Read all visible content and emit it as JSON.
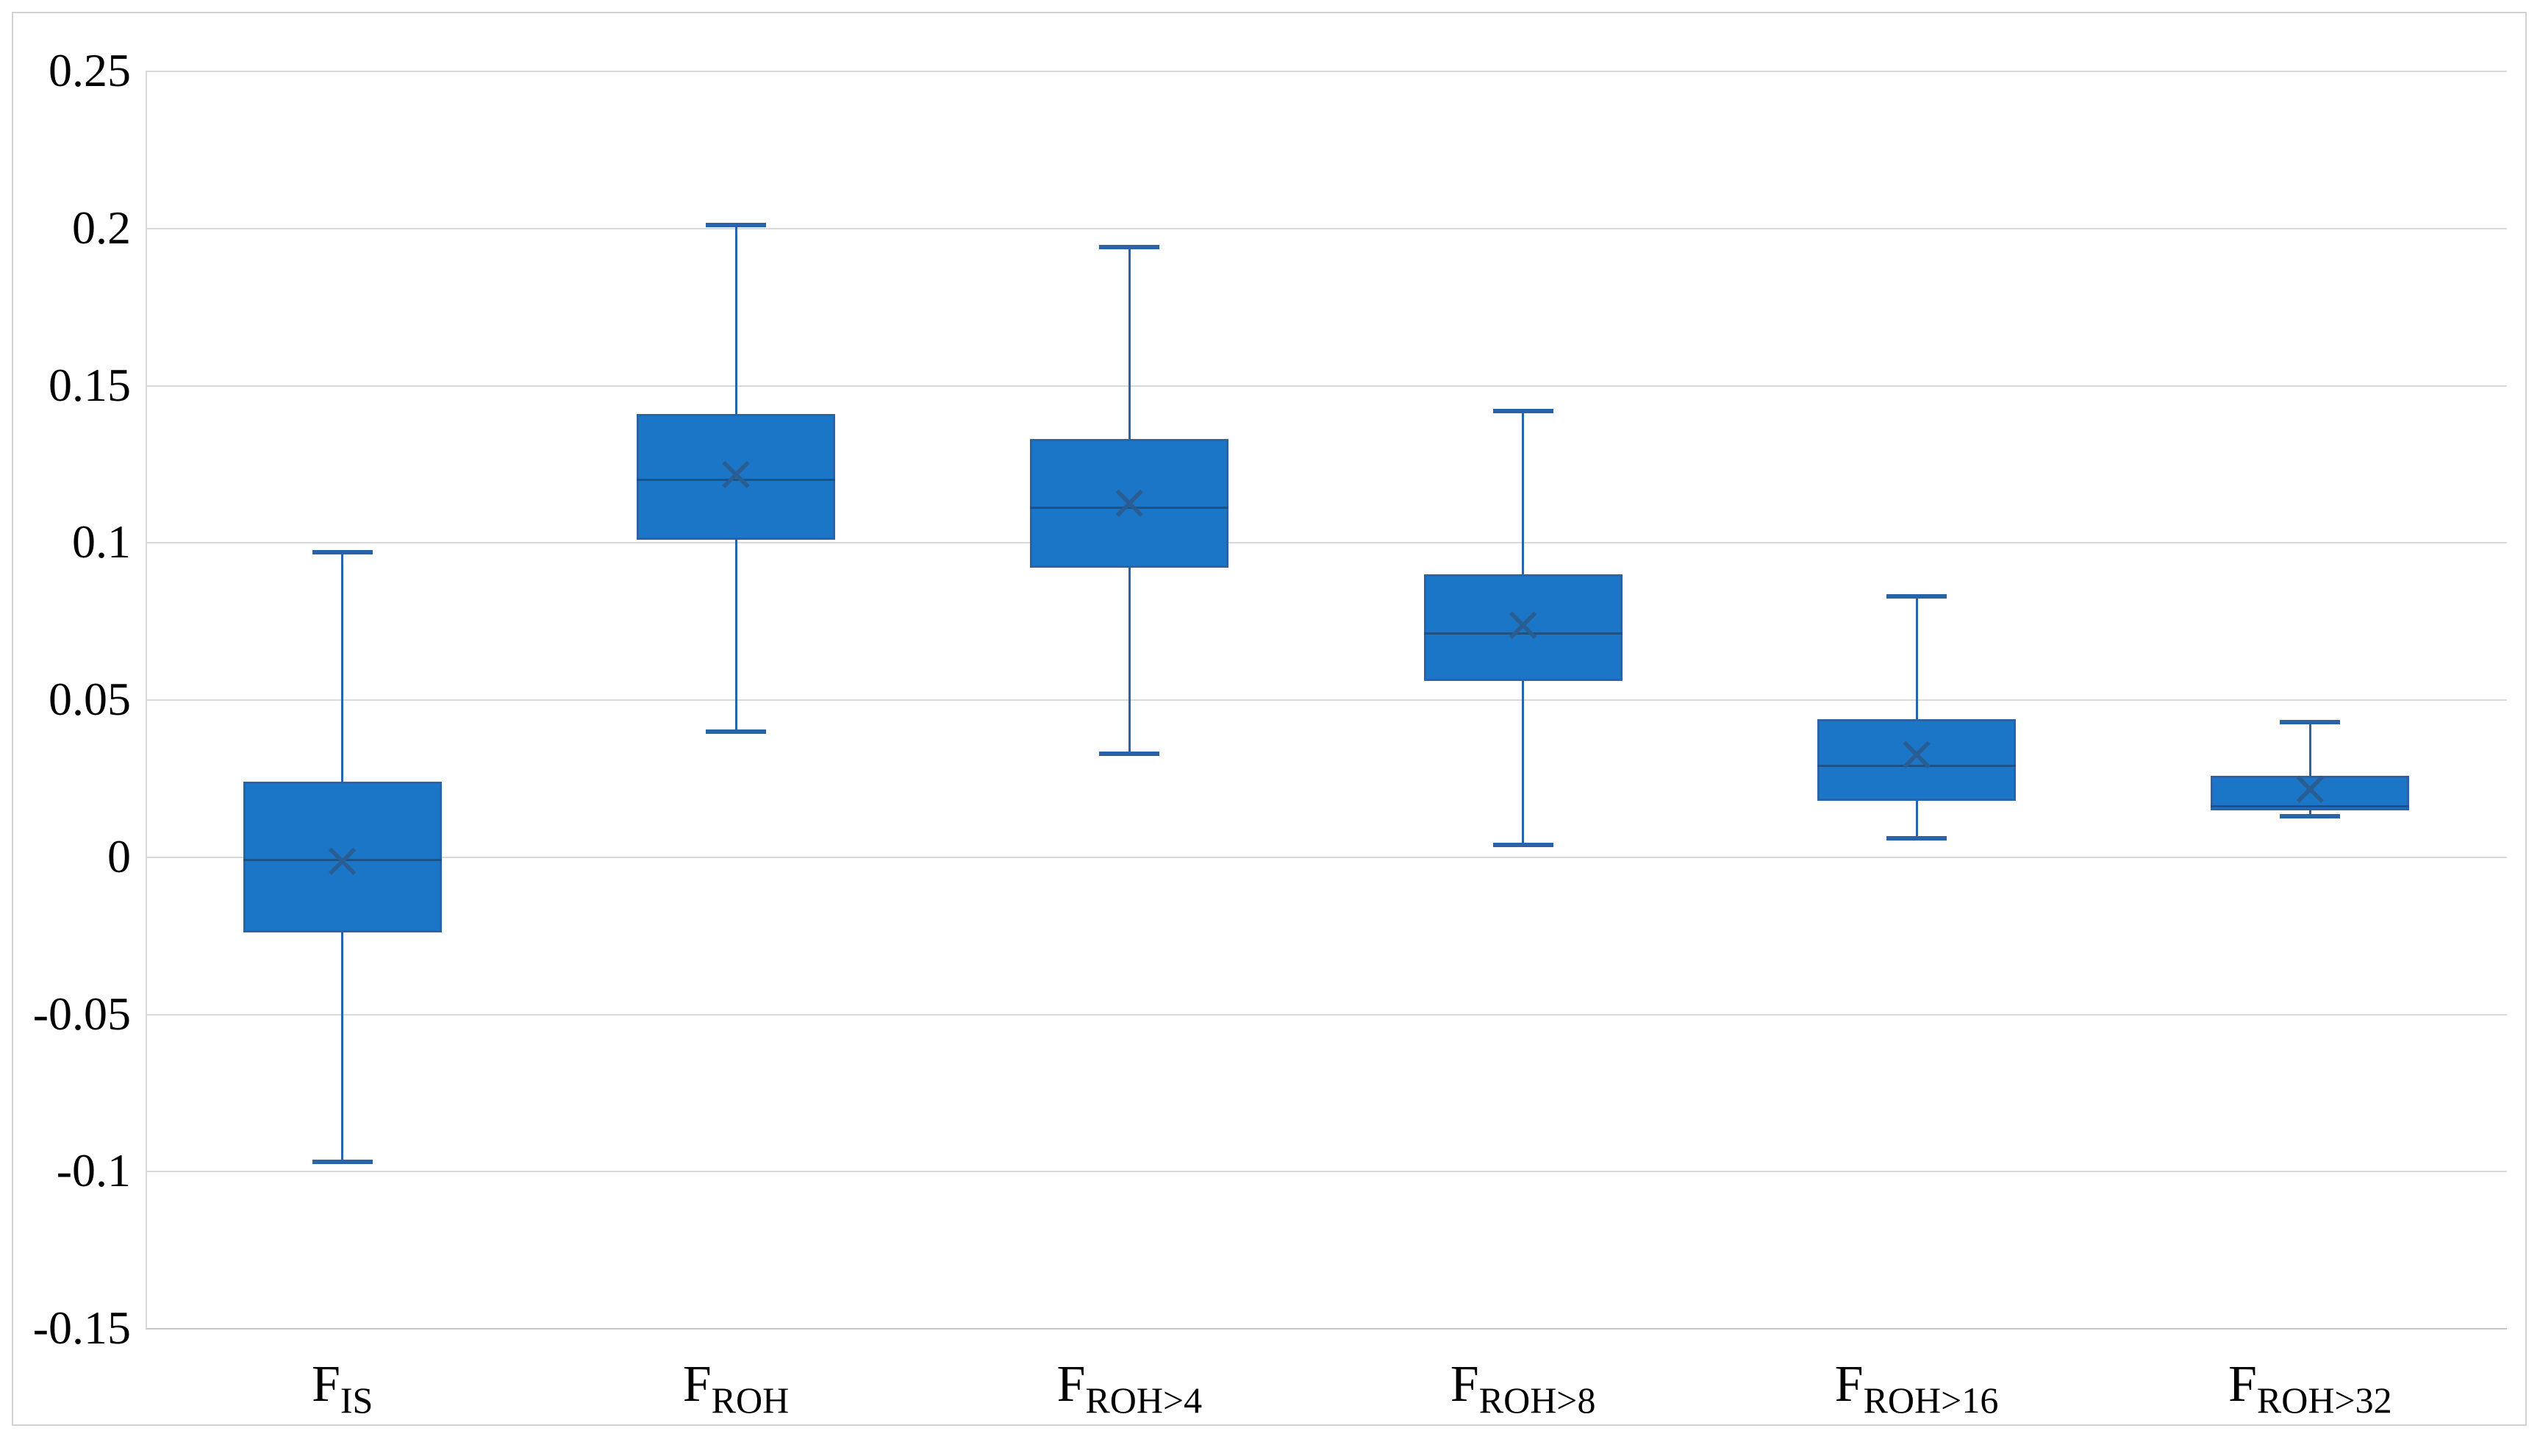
{
  "figure": {
    "background": "#ffffff",
    "border_color": "#d2d2d2"
  },
  "axis": {
    "y_ticks": [
      "0.25",
      "0.2",
      "0.15",
      "0.1",
      "0.05",
      "0",
      "-0.05",
      "-0.1",
      "-0.15"
    ],
    "y_max": 0.25,
    "y_min": -0.15,
    "y_step": 0.05,
    "gridline_color": "#d9d9d9",
    "axis_line_color": "#c6c6c6",
    "tick_label_color": "#000000"
  },
  "chart_data": {
    "type": "boxplot",
    "title": "",
    "xlabel": "",
    "ylabel": "",
    "ylim": [
      -0.15,
      0.25
    ],
    "grid": "horizontal",
    "legend": false,
    "categories": [
      "F_IS",
      "F_ROH",
      "F_ROH>4",
      "F_ROH>8",
      "F_ROH>16",
      "F_ROH>32"
    ],
    "category_labels": [
      {
        "base": "F",
        "sub": "IS"
      },
      {
        "base": "F",
        "sub": "ROH"
      },
      {
        "base": "F",
        "sub": "ROH>4"
      },
      {
        "base": "F",
        "sub": "ROH>8"
      },
      {
        "base": "F",
        "sub": "ROH>16"
      },
      {
        "base": "F",
        "sub": "ROH>32"
      }
    ],
    "boxes": [
      {
        "whisker_low": -0.097,
        "q1": -0.024,
        "median": -0.001,
        "mean": -0.001,
        "q3": 0.024,
        "whisker_high": 0.097
      },
      {
        "whisker_low": 0.04,
        "q1": 0.101,
        "median": 0.12,
        "mean": 0.122,
        "q3": 0.141,
        "whisker_high": 0.201
      },
      {
        "whisker_low": 0.033,
        "q1": 0.092,
        "median": 0.111,
        "mean": 0.113,
        "q3": 0.133,
        "whisker_high": 0.194
      },
      {
        "whisker_low": 0.004,
        "q1": 0.056,
        "median": 0.071,
        "mean": 0.074,
        "q3": 0.09,
        "whisker_high": 0.142
      },
      {
        "whisker_low": 0.006,
        "q1": 0.018,
        "median": 0.029,
        "mean": 0.033,
        "q3": 0.044,
        "whisker_high": 0.083
      },
      {
        "whisker_low": 0.013,
        "q1": 0.015,
        "median": 0.016,
        "mean": 0.022,
        "q3": 0.026,
        "whisker_high": 0.043
      }
    ],
    "colors": {
      "box_fill": "#1b76c7",
      "box_border": "#2b63a8",
      "whisker": "#2b63a8",
      "median": "#1f5282",
      "mean_marker": "#2a5d92",
      "gridline": "#d9d9d9",
      "axis_line": "#c6c6c6"
    },
    "mean_marker_glyph": "×"
  }
}
